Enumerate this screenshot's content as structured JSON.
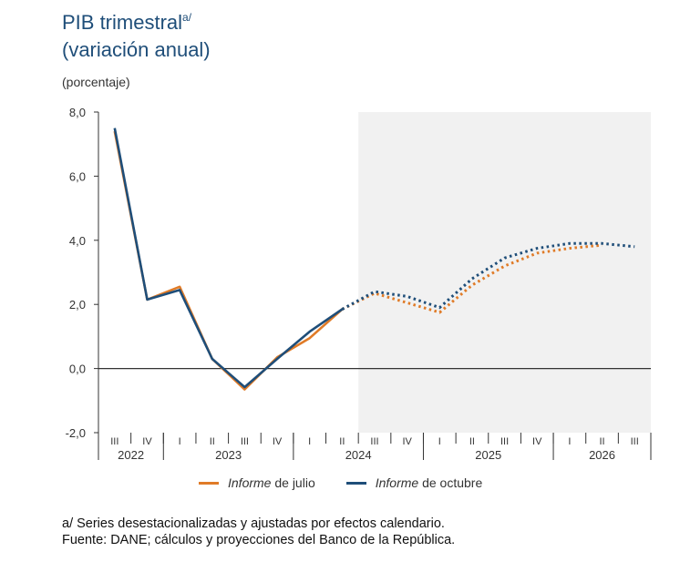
{
  "title": {
    "line1": "PIB trimestral",
    "sup": "a/",
    "line2": "(variación anual)"
  },
  "ylabel": "(porcentaje)",
  "legend": [
    {
      "italic": "Informe",
      "rest": " de julio",
      "color": "#e07b27"
    },
    {
      "italic": "Informe",
      "rest": " de octubre",
      "color": "#1f4e79"
    }
  ],
  "notes": {
    "line1": "a/ Series desestacionalizadas y ajustadas por efectos calendario.",
    "line2": "Fuente: DANE; cálculos y proyecciones del Banco de la República."
  },
  "chart_data": {
    "type": "line",
    "ylim": [
      -2.0,
      8.0
    ],
    "yticks": [
      "-2,0",
      "0,0",
      "2,0",
      "4,0",
      "6,0",
      "8,0"
    ],
    "ytick_values": [
      -2,
      0,
      2,
      4,
      6,
      8
    ],
    "quarters": [
      "III",
      "IV",
      "I",
      "II",
      "III",
      "IV",
      "I",
      "II",
      "III",
      "IV",
      "I",
      "II",
      "III",
      "IV",
      "I",
      "II",
      "III"
    ],
    "years": [
      {
        "label": "2022",
        "start": 0,
        "end": 1
      },
      {
        "label": "2023",
        "start": 2,
        "end": 5
      },
      {
        "label": "2024",
        "start": 6,
        "end": 9
      },
      {
        "label": "2025",
        "start": 10,
        "end": 13
      },
      {
        "label": "2026",
        "start": 14,
        "end": 16
      }
    ],
    "projection_start_index": 7.5,
    "series": [
      {
        "name": "Informe de julio",
        "color": "#e07b27",
        "solid": [
          7.4,
          2.15,
          2.55,
          0.3,
          -0.65,
          0.35,
          0.95,
          1.85
        ],
        "dotted_from": 7,
        "dotted": [
          1.85,
          2.35,
          2.05,
          1.75,
          2.6,
          3.2,
          3.6,
          3.75,
          3.85
        ]
      },
      {
        "name": "Informe de octubre",
        "color": "#1f4e79",
        "solid": [
          7.5,
          2.15,
          2.45,
          0.3,
          -0.58,
          0.3,
          1.15,
          1.85
        ],
        "dotted_from": 7,
        "dotted": [
          1.85,
          2.4,
          2.25,
          1.9,
          2.8,
          3.45,
          3.75,
          3.9,
          3.9,
          3.8
        ]
      }
    ]
  }
}
